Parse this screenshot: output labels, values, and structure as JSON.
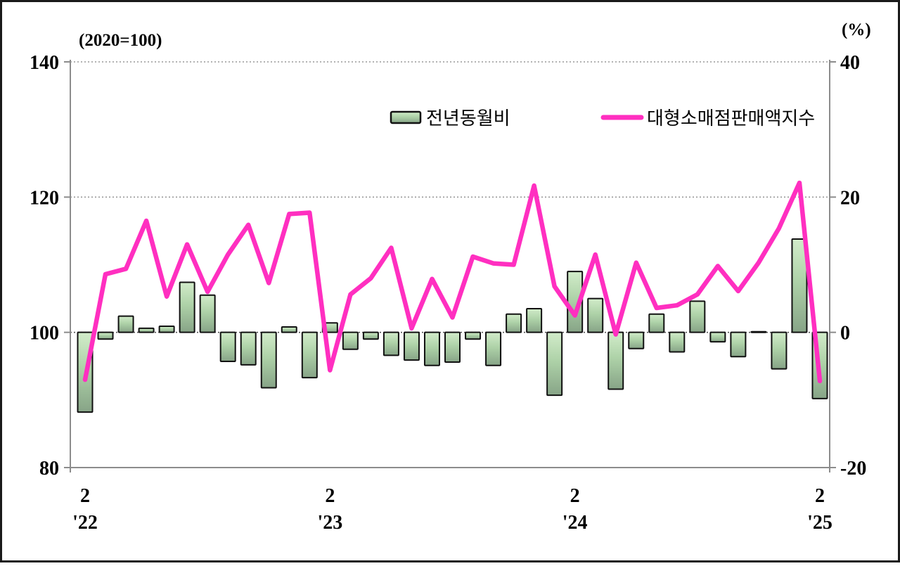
{
  "figure": {
    "left_axis_title": "(2020=100)",
    "right_axis_title": "(%)"
  },
  "legend": {
    "bar_label": "전년동월비",
    "line_label": "대형소매점판매액지수"
  },
  "colors": {
    "line": "#ff2fc0",
    "bar_gradient_top": "#d2ecca",
    "bar_gradient_bottom": "#87a487",
    "bar_border": "#111111",
    "grid": "#999999",
    "zero_grid": "#555555",
    "axis": "#8c8c8c",
    "text": "#000000",
    "border": "#1a1a1a",
    "background": "#ffffff"
  },
  "chart_data": {
    "type": "bar+line",
    "title": "",
    "x": [
      "2022-02",
      "2022-03",
      "2022-04",
      "2022-05",
      "2022-06",
      "2022-07",
      "2022-08",
      "2022-09",
      "2022-10",
      "2022-11",
      "2022-12",
      "2023-01",
      "2023-02",
      "2023-03",
      "2023-04",
      "2023-05",
      "2023-06",
      "2023-07",
      "2023-08",
      "2023-09",
      "2023-10",
      "2023-11",
      "2023-12",
      "2024-01",
      "2024-02",
      "2024-03",
      "2024-04",
      "2024-05",
      "2024-06",
      "2024-07",
      "2024-08",
      "2024-09",
      "2024-10",
      "2024-11",
      "2024-12",
      "2025-01",
      "2025-02"
    ],
    "x_axis_ticks": [
      {
        "index": 0,
        "month": "2",
        "year": "'22"
      },
      {
        "index": 12,
        "month": "2",
        "year": "'23"
      },
      {
        "index": 24,
        "month": "2",
        "year": "'24"
      },
      {
        "index": 36,
        "month": "2",
        "year": "'25"
      }
    ],
    "left_axis": {
      "label": "(2020=100)",
      "ticks": [
        140,
        120,
        100,
        80
      ],
      "range": [
        80,
        140
      ]
    },
    "right_axis": {
      "label": "(%)",
      "ticks": [
        40,
        20,
        0,
        -20
      ],
      "range": [
        -20,
        40
      ]
    },
    "gridlines_at_left_values": [
      140,
      120,
      100
    ],
    "legend_position": "top-center",
    "series": [
      {
        "name": "전년동월비",
        "type": "bar",
        "axis": "right",
        "unit": "%",
        "values": [
          -11.8,
          -1.0,
          2.4,
          0.6,
          0.9,
          7.4,
          5.5,
          -4.3,
          -4.8,
          -8.2,
          0.8,
          -6.7,
          1.4,
          -2.5,
          -1.0,
          -3.4,
          -4.1,
          -4.9,
          -4.4,
          -1.0,
          -4.9,
          2.7,
          3.5,
          -9.3,
          9.0,
          5.0,
          -8.4,
          -2.4,
          2.7,
          -2.9,
          4.6,
          -1.4,
          -3.6,
          0.1,
          -5.4,
          13.8,
          -9.8
        ]
      },
      {
        "name": "대형소매점판매액지수",
        "type": "line",
        "axis": "left",
        "unit": "index (2020=100)",
        "values": [
          93.0,
          108.6,
          109.4,
          116.5,
          105.3,
          113.0,
          106.0,
          111.5,
          115.9,
          107.3,
          117.5,
          117.7,
          94.4,
          105.6,
          108.0,
          112.5,
          100.6,
          107.9,
          102.2,
          111.2,
          110.2,
          110.0,
          121.7,
          106.8,
          102.5,
          111.5,
          99.7,
          110.3,
          103.6,
          104.0,
          105.6,
          109.8,
          106.1,
          110.3,
          115.4,
          122.1,
          92.8
        ]
      }
    ]
  }
}
